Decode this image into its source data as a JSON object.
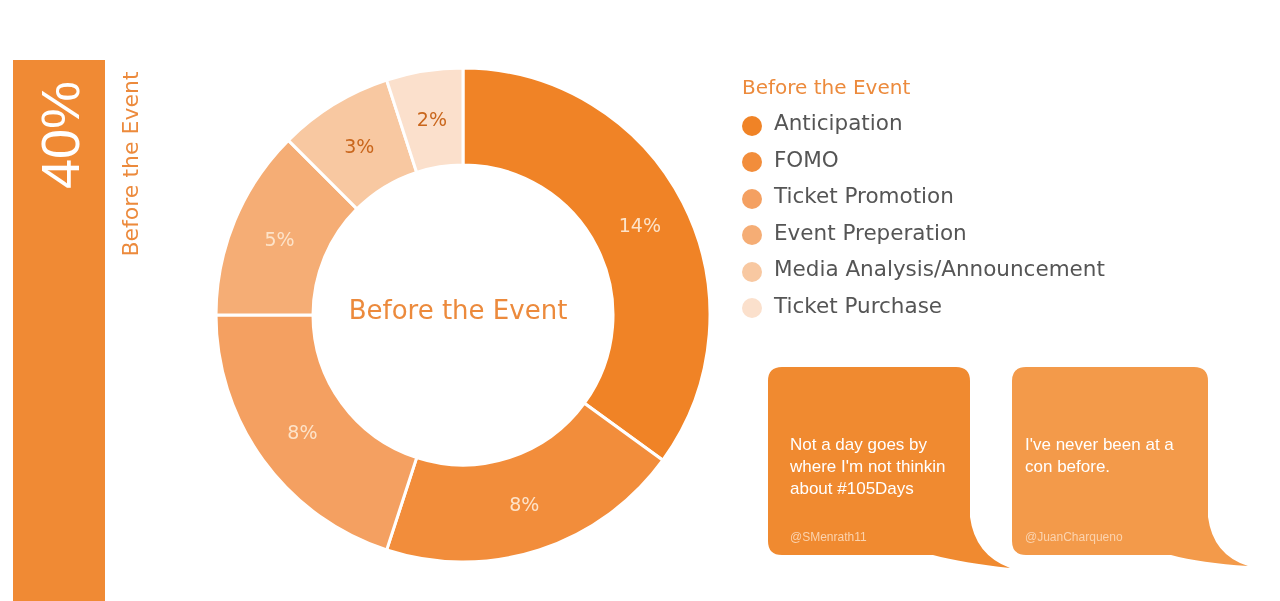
{
  "chart_data": {
    "type": "donut",
    "title": "Before the Event",
    "legend_title": "Before the Event",
    "categories": [
      "Anticipation",
      "FOMO",
      "Ticket Promotion",
      "Event Preperation",
      "Media Analysis/Announcement",
      "Ticket Purchase"
    ],
    "values": [
      14,
      8,
      8,
      5,
      3,
      2
    ],
    "colors": [
      "#f08326",
      "#f28d3b",
      "#f4a061",
      "#f5ad75",
      "#f8c8a1",
      "#fbe0cc"
    ],
    "value_labels": [
      "14%",
      "8%",
      "8%",
      "5%",
      "3%",
      "2%"
    ],
    "legend": "right",
    "annotations": [
      "40%",
      "Before the Event",
      "Not a day goes by where I'm not thinkin about #105Days",
      "@SMenrath11",
      "I've never been at a con before.",
      "@JuanCharqueno"
    ]
  }
}
